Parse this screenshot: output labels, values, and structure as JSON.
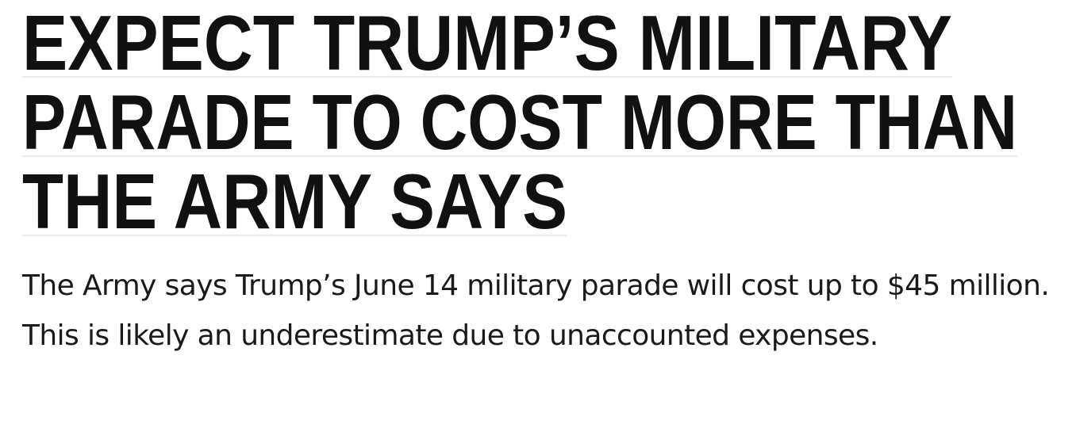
{
  "headline": {
    "lines": [
      "EXPECT TRUMP’S MILITARY",
      "PARADE TO COST MORE THAN",
      "THE ARMY SAYS"
    ]
  },
  "subtitle": "The Army says Trump’s June 14 military parade will cost up to $45 million. This is likely an underestimate due to unaccounted expenses."
}
